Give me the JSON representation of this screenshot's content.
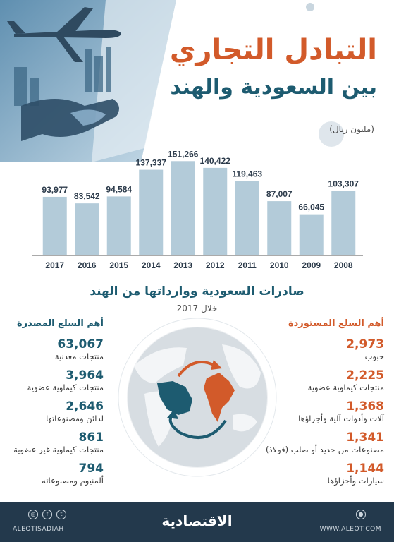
{
  "header": {
    "title_line1": "التبادل التجاري",
    "title_line2": "بين السعودية والهند",
    "unit": "(مليون ريال)"
  },
  "colors": {
    "orange": "#d25a2a",
    "teal": "#1d5b70",
    "bar": "#b3cbd9",
    "footer": "#23394c"
  },
  "chart_data": {
    "type": "bar",
    "title": "",
    "xlabel": "",
    "ylabel": "",
    "categories": [
      "2017",
      "2016",
      "2015",
      "2014",
      "2013",
      "2012",
      "2011",
      "2010",
      "2009",
      "2008"
    ],
    "values": [
      93977,
      83542,
      94584,
      137337,
      151266,
      140422,
      119463,
      87007,
      66045,
      103307
    ],
    "value_labels": [
      "93,977",
      "83,542",
      "94,584",
      "137,337",
      "151,266",
      "140,422",
      "119,463",
      "87,007",
      "66,045",
      "103,307"
    ],
    "ylim": [
      0,
      155000
    ],
    "grid": false,
    "legend": "none"
  },
  "trade_section": {
    "title": "صادرات السعودية ووارداتها من الهند",
    "subtitle": "خلال 2017",
    "imports_heading": "أهم السلع المستوردة",
    "exports_heading": "أهم السلع المصدرة",
    "imports": [
      {
        "value": "2,973",
        "label": "حبوب"
      },
      {
        "value": "2,225",
        "label": "منتجات كيماوية عضوية"
      },
      {
        "value": "1,368",
        "label": "آلات وأدوات آلية وأجزاؤها"
      },
      {
        "value": "1,341",
        "label": "مصنوعات من حديد أو صلب (فولاذ)"
      },
      {
        "value": "1,144",
        "label": "سيارات وأجزاؤها"
      }
    ],
    "exports": [
      {
        "value": "63,067",
        "label": "منتجات معدنية"
      },
      {
        "value": "3,964",
        "label": "منتجات كيماوية عضوية"
      },
      {
        "value": "2,646",
        "label": "لدائن ومصنوعاتها"
      },
      {
        "value": "861",
        "label": "منتجات كيماوية غير عضوية"
      },
      {
        "value": "794",
        "label": "ألمنيوم ومصنوعاته"
      }
    ]
  },
  "footer": {
    "brand": "الاقتصادية",
    "handle": "ALEQTISADIAH",
    "website": "WWW.ALEQT.COM"
  },
  "icons": [
    "instagram-icon",
    "facebook-icon",
    "twitter-icon",
    "globe-icon",
    "airplane-icon",
    "handshake-icon"
  ]
}
